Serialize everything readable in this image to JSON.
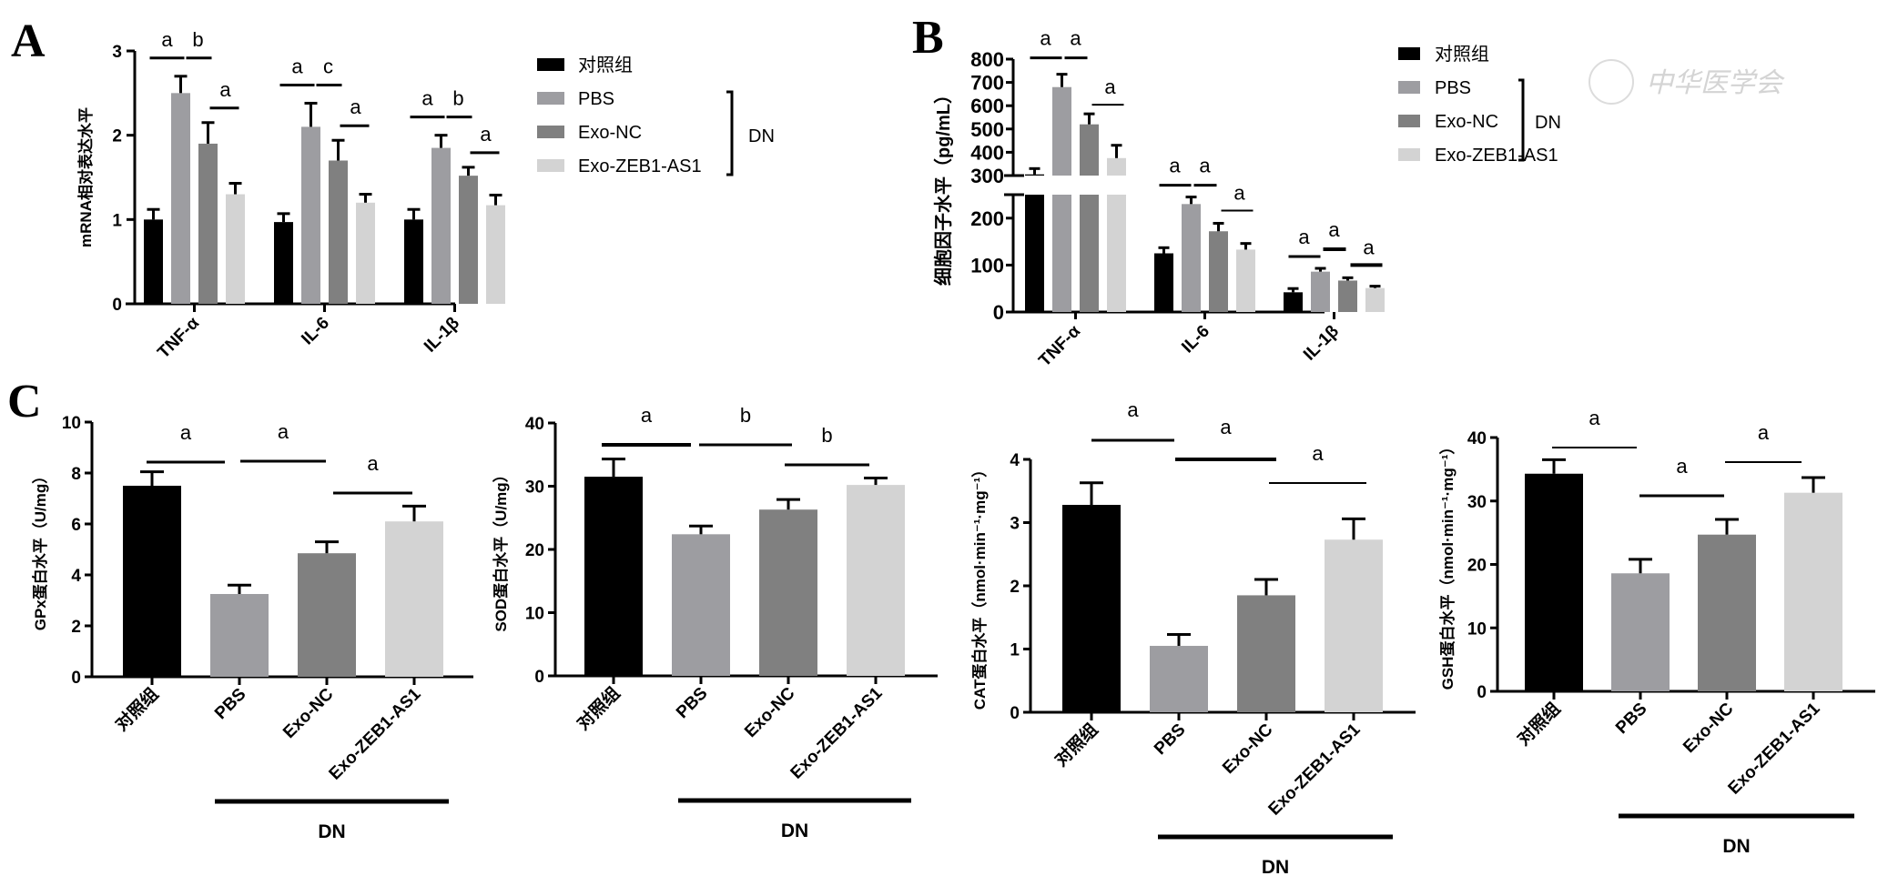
{
  "groups": [
    {
      "name": "对照组",
      "color": "#000000"
    },
    {
      "name": "PBS",
      "color": "#9d9da1"
    },
    {
      "name": "Exo-NC",
      "color": "#808080"
    },
    {
      "name": "Exo-ZEB1-AS1",
      "color": "#d3d3d3"
    }
  ],
  "dn_label": "DN",
  "watermark": "中华医学会",
  "chart_data": [
    {
      "panel": "A",
      "type": "bar",
      "ylabel": "mRNA相对表达水平",
      "ylim": [
        0,
        3
      ],
      "yticks": [
        0,
        1,
        2,
        3
      ],
      "categories": [
        "TNF-α",
        "IL-6",
        "IL-1β"
      ],
      "series": [
        {
          "name": "对照组",
          "values": [
            1.0,
            0.97,
            1.0
          ],
          "errors": [
            0.12,
            0.1,
            0.12
          ]
        },
        {
          "name": "PBS",
          "values": [
            2.5,
            2.1,
            1.85
          ],
          "errors": [
            0.2,
            0.28,
            0.15
          ]
        },
        {
          "name": "Exo-NC",
          "values": [
            1.9,
            1.7,
            1.52
          ],
          "errors": [
            0.25,
            0.24,
            0.1
          ]
        },
        {
          "name": "Exo-ZEB1-AS1",
          "values": [
            1.3,
            1.2,
            1.17
          ],
          "errors": [
            0.13,
            0.1,
            0.12
          ]
        }
      ],
      "significance": [
        {
          "category": "TNF-α",
          "labels": [
            "a",
            "b",
            "a"
          ]
        },
        {
          "category": "IL-6",
          "labels": [
            "a",
            "c",
            "a"
          ]
        },
        {
          "category": "IL-1β",
          "labels": [
            "a",
            "b",
            "a"
          ]
        }
      ],
      "legend": {
        "items": [
          "对照组",
          "PBS",
          "Exo-NC",
          "Exo-ZEB1-AS1"
        ],
        "bracket": "DN",
        "placement": "right"
      }
    },
    {
      "panel": "B",
      "type": "bar",
      "ylabel": "细胞因子水平（pg/mL）",
      "axis_break": [
        250,
        300
      ],
      "ylim": [
        0,
        800
      ],
      "yticks_lower": [
        0,
        100,
        200
      ],
      "yticks_upper": [
        300,
        400,
        500,
        600,
        700,
        800
      ],
      "categories": [
        "TNF-α",
        "IL-6",
        "IL-1β"
      ],
      "series": [
        {
          "name": "对照组",
          "values": [
            305,
            125,
            42
          ],
          "errors": [
            25,
            12,
            8
          ]
        },
        {
          "name": "PBS",
          "values": [
            680,
            230,
            86
          ],
          "errors": [
            55,
            15,
            7
          ]
        },
        {
          "name": "Exo-NC",
          "values": [
            520,
            172,
            67
          ],
          "errors": [
            45,
            17,
            6
          ]
        },
        {
          "name": "Exo-ZEB1-AS1",
          "values": [
            375,
            133,
            51
          ],
          "errors": [
            55,
            13,
            4
          ]
        }
      ],
      "significance": [
        {
          "category": "TNF-α",
          "labels": [
            "a",
            "a",
            "a"
          ]
        },
        {
          "category": "IL-6",
          "labels": [
            "a",
            "a",
            "a"
          ]
        },
        {
          "category": "IL-1β",
          "labels": [
            "a",
            "a",
            "a"
          ]
        }
      ],
      "legend": {
        "items": [
          "对照组",
          "PBS",
          "Exo-NC",
          "Exo-ZEB1-AS1"
        ],
        "bracket": "DN",
        "placement": "right"
      }
    },
    {
      "panel": "C1",
      "type": "bar",
      "ylabel": "GPx蛋白水平（U/mg）",
      "ylim": [
        0,
        10
      ],
      "yticks": [
        0,
        2,
        4,
        6,
        8,
        10
      ],
      "categories": [
        "对照组",
        "PBS",
        "Exo-NC",
        "Exo-ZEB1-AS1"
      ],
      "values": [
        7.5,
        3.25,
        4.85,
        6.1
      ],
      "errors": [
        0.55,
        0.35,
        0.45,
        0.6
      ],
      "significance": [
        "a",
        "a",
        "a"
      ]
    },
    {
      "panel": "C2",
      "type": "bar",
      "ylabel": "SOD蛋白水平（U/mg）",
      "ylim": [
        0,
        40
      ],
      "yticks": [
        0,
        10,
        20,
        30,
        40
      ],
      "categories": [
        "对照组",
        "PBS",
        "Exo-NC",
        "Exo-ZEB1-AS1"
      ],
      "values": [
        31.5,
        22.4,
        26.3,
        30.2
      ],
      "errors": [
        2.8,
        1.3,
        1.6,
        1.1
      ],
      "significance": [
        "a",
        "b",
        "b"
      ]
    },
    {
      "panel": "C3",
      "type": "bar",
      "ylabel": "CAT蛋白水平（nmol·min⁻¹·mg⁻¹）",
      "ylim": [
        0,
        4
      ],
      "yticks": [
        0,
        1,
        2,
        3,
        4
      ],
      "categories": [
        "对照组",
        "PBS",
        "Exo-NC",
        "Exo-ZEB1-AS1"
      ],
      "values": [
        3.28,
        1.05,
        1.85,
        2.73
      ],
      "errors": [
        0.35,
        0.18,
        0.25,
        0.33
      ],
      "significance": [
        "a",
        "a",
        "a"
      ]
    },
    {
      "panel": "C4",
      "type": "bar",
      "ylabel": "GSH蛋白水平（nmol·min⁻¹·mg⁻¹）",
      "ylim": [
        0,
        40
      ],
      "yticks": [
        0,
        10,
        20,
        30,
        40
      ],
      "categories": [
        "对照组",
        "PBS",
        "Exo-NC",
        "Exo-ZEB1-AS1"
      ],
      "values": [
        34.3,
        18.6,
        24.7,
        31.3
      ],
      "errors": [
        2.2,
        2.2,
        2.4,
        2.4
      ],
      "significance": [
        "a",
        "a",
        "a"
      ]
    }
  ]
}
